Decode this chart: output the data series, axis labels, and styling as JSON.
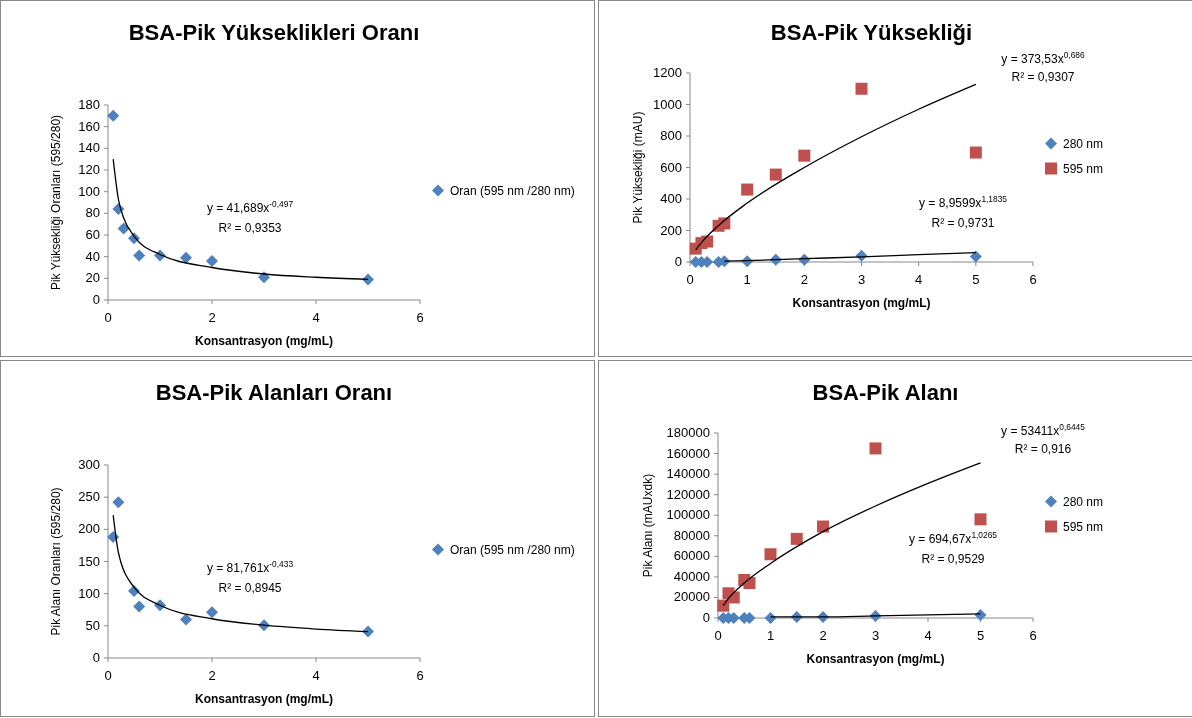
{
  "chart_data": [
    {
      "type": "scatter",
      "title": "BSA-Pik Yükseklikleri Oranı",
      "xlabel": "Konsantrasyon  (mg/mL)",
      "ylabel": "Pik Yüksekliği Oranları  (595/280)",
      "x": [
        0.1,
        0.2,
        0.3,
        0.5,
        0.6,
        1,
        1.5,
        2,
        3,
        5
      ],
      "xlim": [
        0,
        6
      ],
      "xticks": [
        0,
        2,
        4,
        6
      ],
      "ylim": [
        0,
        180
      ],
      "yticks": [
        0,
        20,
        40,
        60,
        80,
        100,
        120,
        140,
        160,
        180
      ],
      "grid": false,
      "legend": "right",
      "series": [
        {
          "name": "Oran (595 nm /280 nm)",
          "color": "#4f81bd",
          "marker": "diamond",
          "values": [
            170,
            84,
            66,
            57,
            41,
            41,
            39,
            36,
            21,
            19
          ]
        },
        {
          "type": "line",
          "color": "#000000",
          "marker": "none",
          "x": [
            0.1,
            0.2,
            0.3,
            0.5,
            1,
            2,
            3,
            4,
            5
          ],
          "values": [
            130,
            93,
            76,
            59,
            42,
            30,
            24,
            21,
            19
          ]
        }
      ],
      "annotations": [
        "y = 41,689x$^{-0,497}$",
        "R² = 0,9353"
      ]
    },
    {
      "type": "scatter",
      "title": "BSA-Pik Yüksekliği",
      "xlabel": "Konsantrasyon  (mg/mL)",
      "ylabel": "Pik Yüksekliği (mAU)",
      "x": [
        0.1,
        0.2,
        0.3,
        0.5,
        0.6,
        1,
        1.5,
        2,
        3,
        5
      ],
      "xlim": [
        0,
        6
      ],
      "xticks": [
        0,
        1,
        2,
        3,
        4,
        5,
        6
      ],
      "ylim": [
        0,
        1200
      ],
      "yticks": [
        0,
        200,
        400,
        600,
        800,
        1000,
        1200
      ],
      "grid": false,
      "legend": "right",
      "series": [
        {
          "name": "280 nm",
          "color": "#4f81bd",
          "marker": "diamond",
          "values": [
            0,
            0,
            0,
            0,
            5,
            5,
            15,
            15,
            40,
            35
          ]
        },
        {
          "name": "595 nm",
          "color": "#c0504d",
          "marker": "square",
          "values": [
            85,
            120,
            130,
            230,
            245,
            460,
            555,
            675,
            1100,
            695
          ]
        },
        {
          "type": "line",
          "color": "#000000",
          "marker": "none",
          "x": [
            0.1,
            0.2,
            0.5,
            1,
            2,
            3,
            4,
            5
          ],
          "values": [
            77,
            123,
            232,
            374,
            600,
            795,
            970,
            1128
          ]
        },
        {
          "type": "line",
          "color": "#000000",
          "marker": "none",
          "x": [
            0.6,
            1,
            2,
            3,
            4,
            5
          ],
          "values": [
            5,
            9,
            21,
            33,
            47,
            60
          ]
        }
      ],
      "annotations": [
        "y = 373,53x$^{0,686}$",
        "R² = 0,9307",
        "y = 8,9599x$^{1,1835}$",
        "R² = 0,9731"
      ]
    },
    {
      "type": "scatter",
      "title": "BSA-Pik Alanları Oranı",
      "xlabel": "Konsantrasyon  (mg/mL)",
      "ylabel": "Pik Alanı Oranları  (595/280)",
      "x": [
        0.1,
        0.2,
        0.5,
        0.6,
        1,
        1.5,
        2,
        3,
        5
      ],
      "xlim": [
        0,
        6
      ],
      "xticks": [
        0,
        2,
        4,
        6
      ],
      "ylim": [
        0,
        300
      ],
      "yticks": [
        0,
        50,
        100,
        150,
        200,
        250,
        300
      ],
      "grid": false,
      "legend": "right",
      "series": [
        {
          "name": "Oran (595 nm /280 nm)",
          "color": "#4f81bd",
          "marker": "diamond",
          "values": [
            188,
            242,
            104,
            80,
            82,
            60,
            71,
            51,
            41
          ]
        },
        {
          "type": "line",
          "color": "#000000",
          "marker": "none",
          "x": [
            0.1,
            0.2,
            0.5,
            1,
            2,
            3,
            4,
            5
          ],
          "values": [
            222,
            164,
            110,
            82,
            61,
            51,
            45,
            41
          ]
        }
      ],
      "annotations": [
        "y = 81,761x$^{-0,433}$",
        "R² = 0,8945"
      ]
    },
    {
      "type": "scatter",
      "title": "BSA-Pik Alanı",
      "xlabel": "Konsantrasyon  (mg/mL)",
      "ylabel": "Pik Alanı  (mAUxdk)",
      "x": [
        0.1,
        0.2,
        0.3,
        0.5,
        0.6,
        1,
        1.5,
        2,
        3,
        5
      ],
      "xlim": [
        0,
        6
      ],
      "xticks": [
        0,
        1,
        2,
        3,
        4,
        5,
        6
      ],
      "ylim": [
        0,
        180000
      ],
      "yticks": [
        0,
        20000,
        40000,
        60000,
        80000,
        100000,
        120000,
        140000,
        160000,
        180000
      ],
      "grid": false,
      "legend": "right",
      "series": [
        {
          "name": "280 nm",
          "color": "#4f81bd",
          "marker": "diamond",
          "values": [
            0,
            0,
            0,
            0,
            0,
            0,
            1000,
            1000,
            2000,
            3000
          ]
        },
        {
          "name": "595 nm",
          "color": "#c0504d",
          "marker": "square",
          "values": [
            12000,
            24000,
            20000,
            37000,
            34000,
            62000,
            77000,
            89000,
            165000,
            96000
          ]
        },
        {
          "type": "line",
          "color": "#000000",
          "marker": "none",
          "x": [
            0.1,
            0.2,
            0.5,
            1,
            2,
            3,
            4,
            5
          ],
          "values": [
            12000,
            19000,
            34000,
            53000,
            84000,
            109000,
            131000,
            151000
          ]
        },
        {
          "type": "line",
          "color": "#000000",
          "marker": "none",
          "x": [
            1,
            2,
            3,
            5
          ],
          "values": [
            1000,
            1000,
            2000,
            4000
          ]
        }
      ],
      "annotations": [
        "y = 53411x$^{0,6445}$",
        "R² = 0,916",
        "y = 694,67x$^{1,0265}$",
        "R² = 0,9529"
      ]
    }
  ]
}
